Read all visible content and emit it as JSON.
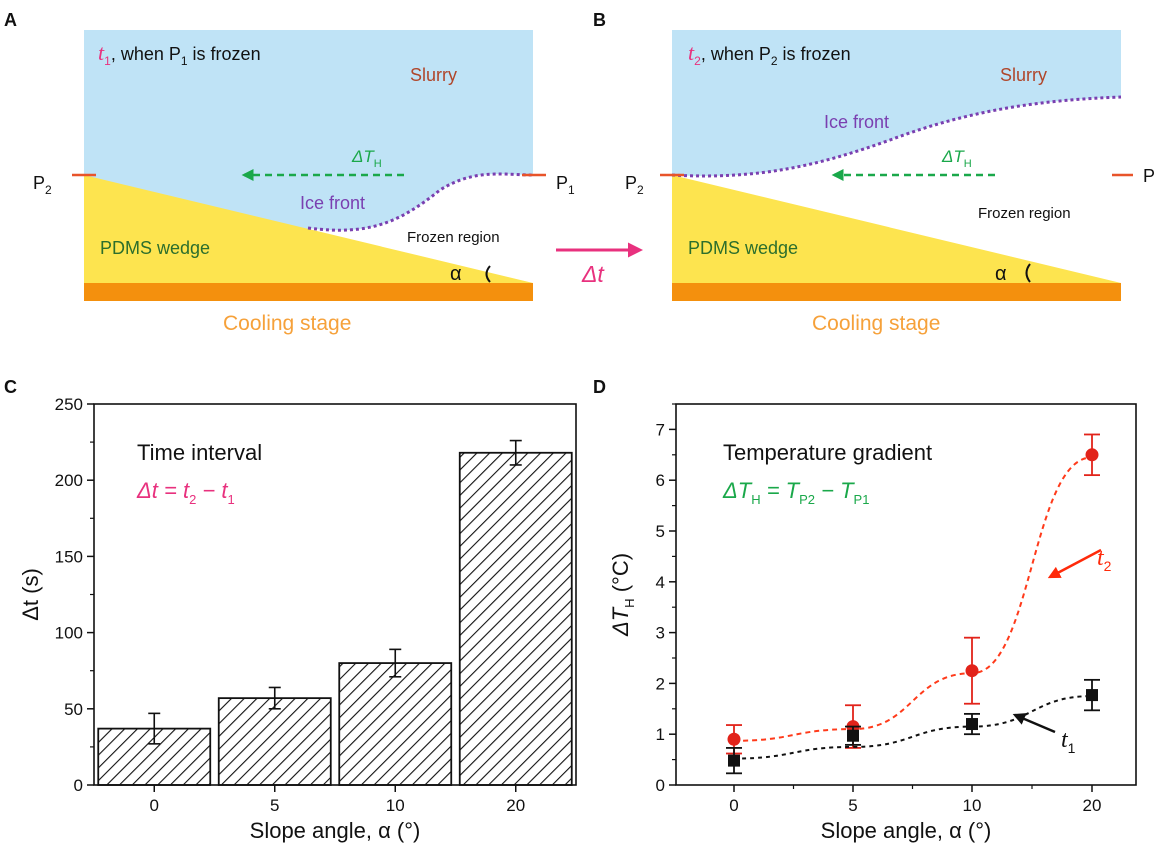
{
  "panels": {
    "a": {
      "letter": "A",
      "time_var": "t",
      "time_sub": "1",
      "title_mid": ", when P",
      "point_sub": "1",
      "title_end": " is frozen",
      "slurry": "Slurry",
      "ice_front": "Ice front",
      "delta_symbol": "ΔT",
      "delta_sub": "H",
      "pdms": "PDMS wedge",
      "frozen": "Frozen region",
      "alpha": "α",
      "cooling": "Cooling stage",
      "p_left": "P",
      "p_left_sub": "2",
      "p_right": "P",
      "p_right_sub": "1"
    },
    "b": {
      "letter": "B",
      "time_var": "t",
      "time_sub": "2",
      "title_mid": ", when P",
      "point_sub": "2",
      "title_end": " is frozen",
      "slurry": "Slurry",
      "ice_front": "Ice front",
      "delta_symbol": "ΔT",
      "delta_sub": "H",
      "pdms": "PDMS wedge",
      "frozen": "Frozen region",
      "alpha": "α",
      "cooling": "Cooling stage",
      "p_left": "P",
      "p_left_sub": "2",
      "p_right": "P"
    },
    "transition": "Δt",
    "c": {
      "letter": "C",
      "annotation_title": "Time interval",
      "eq_lhs": "Δt",
      "eq_mid": " = t",
      "eq_sub1": "2",
      "eq_minus": " − t",
      "eq_sub2": "1"
    },
    "d": {
      "letter": "D",
      "annotation_title": "Temperature gradient",
      "eq_lhs": "ΔT",
      "eq_lhs_sub": "H",
      "eq_mid": " = T",
      "eq_sub1": "P2",
      "eq_minus": " − T",
      "eq_sub2": "P1",
      "label_t2": "t",
      "label_t2_sub": "2",
      "label_t1": "t",
      "label_t1_sub": "1"
    }
  },
  "colors": {
    "slurry": "#bfe3f6",
    "pdms": "#fde44f",
    "cooling": "#f4900d",
    "cooling_text": "#f6a13a",
    "magenta": "#e8317e",
    "green": "#1aa84a",
    "purple": "#7a3fb0",
    "brown": "#b0462a",
    "dark_green": "#2c6e2c",
    "red": "#ff2a0a",
    "red_marker": "#e2231a",
    "black": "#111111"
  },
  "chart_data": [
    {
      "type": "bar",
      "panel": "C",
      "categories": [
        "0",
        "5",
        "10",
        "20"
      ],
      "values": [
        37,
        57,
        80,
        218
      ],
      "errors": [
        10,
        7,
        9,
        8
      ],
      "xlabel": "Slope angle, α (°)",
      "ylabel": "Δt (s)",
      "ylim": [
        0,
        250
      ],
      "yticks": [
        0,
        50,
        100,
        150,
        200,
        250
      ],
      "hatch": true
    },
    {
      "type": "scatter",
      "panel": "D",
      "categories": [
        "0",
        "5",
        "10",
        "20"
      ],
      "xlabel": "Slope angle, α (°)",
      "ylabel": "ΔT",
      "ylabel_sub": "H",
      "ylabel_unit": " (°C)",
      "ylim": [
        0,
        7.5
      ],
      "yticks": [
        0,
        1,
        2,
        3,
        4,
        5,
        6,
        7
      ],
      "series": [
        {
          "name": "t2",
          "values": [
            0.9,
            1.15,
            2.25,
            6.5
          ],
          "errors": [
            0.28,
            0.42,
            0.65,
            0.4
          ],
          "color": "#e2231a",
          "marker": "circle",
          "fit": [
            0.87,
            1.1,
            2.2,
            6.45
          ]
        },
        {
          "name": "t1",
          "values": [
            0.48,
            0.97,
            1.2,
            1.77
          ],
          "errors": [
            0.25,
            0.18,
            0.2,
            0.3
          ],
          "color": "#111111",
          "marker": "square",
          "fit": [
            0.52,
            0.75,
            1.15,
            1.75
          ]
        }
      ]
    }
  ]
}
